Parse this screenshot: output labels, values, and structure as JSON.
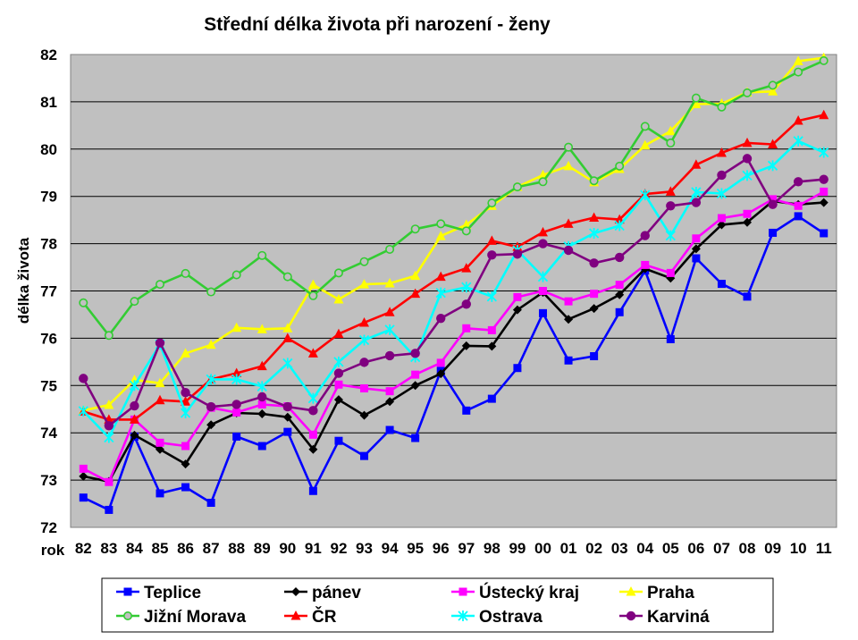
{
  "chart_data": {
    "type": "line",
    "title": "Střední délka života při narození - ženy",
    "ylabel": "délka života",
    "xlabel": "rok",
    "ylim": [
      72,
      82
    ],
    "yticks": [
      "72",
      "73",
      "74",
      "75",
      "76",
      "77",
      "78",
      "79",
      "80",
      "81",
      "82"
    ],
    "categories": [
      "82",
      "83",
      "84",
      "85",
      "86",
      "87",
      "88",
      "89",
      "90",
      "91",
      "92",
      "93",
      "94",
      "95",
      "96",
      "97",
      "98",
      "99",
      "00",
      "01",
      "02",
      "03",
      "04",
      "05",
      "06",
      "07",
      "08",
      "09",
      "10",
      "11"
    ],
    "grid": true,
    "legend_position": "bottom",
    "series": [
      {
        "name": "Teplice",
        "color": "#0000ff",
        "marker": "square",
        "values": [
          72.63,
          72.37,
          73.92,
          72.72,
          72.85,
          72.52,
          73.92,
          73.72,
          74.02,
          72.77,
          73.83,
          73.51,
          74.06,
          73.89,
          75.31,
          74.47,
          74.72,
          75.37,
          76.53,
          75.53,
          75.62,
          76.55,
          77.43,
          75.98,
          77.69,
          77.15,
          76.88,
          78.23,
          78.58,
          78.22
        ]
      },
      {
        "name": "pánev",
        "color": "#000000",
        "marker": "diamond",
        "values": [
          73.08,
          72.97,
          73.95,
          73.65,
          73.34,
          74.17,
          74.42,
          74.4,
          74.33,
          73.65,
          74.7,
          74.37,
          74.66,
          75.0,
          75.25,
          75.84,
          75.83,
          76.6,
          76.97,
          76.4,
          76.63,
          76.92,
          77.47,
          77.27,
          77.89,
          78.4,
          78.45,
          78.9,
          78.83,
          78.87
        ]
      },
      {
        "name": "Ústecký kraj",
        "color": "#ff00ff",
        "marker": "square",
        "values": [
          73.24,
          72.96,
          74.28,
          73.79,
          73.72,
          74.53,
          74.43,
          74.6,
          74.56,
          73.96,
          75.02,
          74.94,
          74.88,
          75.23,
          75.48,
          76.21,
          76.17,
          76.87,
          77.0,
          76.78,
          76.94,
          77.13,
          77.55,
          77.38,
          78.11,
          78.54,
          78.63,
          78.94,
          78.8,
          79.1
        ]
      },
      {
        "name": "Praha",
        "color": "#ffff00",
        "marker": "triangle",
        "values": [
          74.47,
          74.59,
          75.12,
          75.05,
          75.68,
          75.86,
          76.22,
          76.19,
          76.21,
          77.13,
          76.82,
          77.14,
          77.16,
          77.32,
          78.16,
          78.4,
          78.8,
          79.2,
          79.45,
          79.64,
          79.3,
          79.58,
          80.08,
          80.38,
          80.95,
          80.96,
          81.2,
          81.22,
          81.86,
          81.93
        ]
      },
      {
        "name": "Jižní Morava",
        "color": "#33cc33",
        "marker": "circle",
        "values": [
          76.75,
          76.06,
          76.78,
          77.14,
          77.37,
          76.98,
          77.34,
          77.75,
          77.3,
          76.9,
          77.38,
          77.62,
          77.88,
          78.31,
          78.42,
          78.27,
          78.86,
          79.2,
          79.31,
          80.04,
          79.33,
          79.64,
          80.48,
          80.13,
          81.08,
          80.89,
          81.19,
          81.35,
          81.63,
          81.87
        ]
      },
      {
        "name": "ČR",
        "color": "#ff0000",
        "marker": "triangle",
        "values": [
          74.45,
          74.28,
          74.28,
          74.69,
          74.66,
          75.13,
          75.26,
          75.41,
          76.0,
          75.68,
          76.09,
          76.33,
          76.55,
          76.94,
          77.3,
          77.48,
          78.06,
          77.93,
          78.24,
          78.42,
          78.55,
          78.51,
          79.05,
          79.1,
          79.67,
          79.92,
          80.13,
          80.1,
          80.6,
          80.72
        ]
      },
      {
        "name": "Ostrava",
        "color": "#00ffff",
        "marker": "asterisk",
        "values": [
          74.46,
          73.9,
          75.0,
          75.87,
          74.42,
          75.13,
          75.13,
          74.98,
          75.47,
          74.73,
          75.5,
          75.96,
          76.18,
          75.6,
          76.96,
          77.08,
          76.88,
          77.86,
          77.3,
          77.94,
          78.22,
          78.38,
          79.03,
          78.17,
          79.09,
          79.06,
          79.44,
          79.65,
          80.17,
          79.93
        ]
      },
      {
        "name": "Karviná",
        "color": "#800080",
        "marker": "circle",
        "values": [
          75.15,
          74.15,
          74.57,
          75.9,
          74.85,
          74.55,
          74.6,
          74.76,
          74.55,
          74.47,
          75.26,
          75.49,
          75.63,
          75.68,
          76.42,
          76.72,
          77.76,
          77.78,
          78.0,
          77.86,
          77.59,
          77.71,
          78.17,
          78.8,
          78.87,
          79.45,
          79.8,
          78.83,
          79.31,
          79.36
        ]
      }
    ]
  }
}
